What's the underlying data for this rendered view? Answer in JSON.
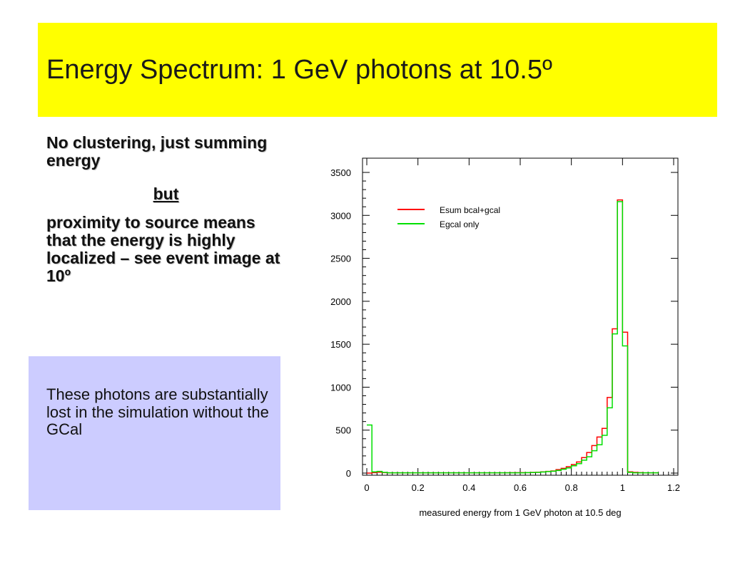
{
  "slide": {
    "title": "Energy Spectrum: 1 GeV photons at 10.5º",
    "bullet1": "No clustering, just summing energy",
    "but": "but",
    "bullet2": "proximity to source means that the energy is highly localized – see event image at 10º",
    "note": "These photons are substantially lost in the simulation without the GCal"
  },
  "colors": {
    "title_bg": "#ffff00",
    "note_bg": "#ccccff",
    "esum": "#ff0000",
    "egcal": "#00e000"
  },
  "chart_data": {
    "type": "line",
    "xlabel": "measured energy from 1 GeV photon at 10.5 deg",
    "ylabel": "",
    "xlim": [
      0,
      1.2
    ],
    "ylim": [
      0,
      3500
    ],
    "x_ticks": [
      "0",
      "0.2",
      "0.4",
      "0.6",
      "0.8",
      "1",
      "1.2"
    ],
    "y_ticks": [
      "0",
      "500",
      "1000",
      "1500",
      "2000",
      "2500",
      "3000",
      "3500"
    ],
    "legend_position": "top-left",
    "bin_width": 0.02,
    "series": [
      {
        "name": "Esum bcal+gcal",
        "color": "#ff0000",
        "bins": [
          [
            0.0,
            0
          ],
          [
            0.02,
            5
          ],
          [
            0.04,
            10
          ],
          [
            0.06,
            5
          ],
          [
            0.08,
            3
          ],
          [
            0.1,
            3
          ],
          [
            0.2,
            3
          ],
          [
            0.3,
            3
          ],
          [
            0.4,
            3
          ],
          [
            0.5,
            3
          ],
          [
            0.6,
            5
          ],
          [
            0.62,
            5
          ],
          [
            0.64,
            8
          ],
          [
            0.66,
            10
          ],
          [
            0.68,
            15
          ],
          [
            0.7,
            20
          ],
          [
            0.72,
            25
          ],
          [
            0.74,
            40
          ],
          [
            0.76,
            55
          ],
          [
            0.78,
            75
          ],
          [
            0.8,
            100
          ],
          [
            0.82,
            130
          ],
          [
            0.84,
            180
          ],
          [
            0.86,
            240
          ],
          [
            0.88,
            320
          ],
          [
            0.9,
            420
          ],
          [
            0.92,
            520
          ],
          [
            0.94,
            880
          ],
          [
            0.96,
            1680
          ],
          [
            0.98,
            3180
          ],
          [
            1.0,
            1640
          ],
          [
            1.02,
            15
          ],
          [
            1.04,
            8
          ],
          [
            1.06,
            5
          ],
          [
            1.08,
            3
          ],
          [
            1.1,
            3
          ],
          [
            1.12,
            3
          ]
        ]
      },
      {
        "name": "Egcal only",
        "color": "#00e000",
        "bins": [
          [
            0.0,
            560
          ],
          [
            0.02,
            15
          ],
          [
            0.04,
            20
          ],
          [
            0.06,
            8
          ],
          [
            0.08,
            3
          ],
          [
            0.1,
            3
          ],
          [
            0.2,
            3
          ],
          [
            0.3,
            3
          ],
          [
            0.4,
            3
          ],
          [
            0.5,
            3
          ],
          [
            0.6,
            3
          ],
          [
            0.62,
            5
          ],
          [
            0.64,
            6
          ],
          [
            0.66,
            8
          ],
          [
            0.68,
            12
          ],
          [
            0.7,
            18
          ],
          [
            0.72,
            22
          ],
          [
            0.74,
            30
          ],
          [
            0.76,
            45
          ],
          [
            0.78,
            60
          ],
          [
            0.8,
            85
          ],
          [
            0.82,
            110
          ],
          [
            0.84,
            150
          ],
          [
            0.86,
            190
          ],
          [
            0.88,
            260
          ],
          [
            0.9,
            330
          ],
          [
            0.92,
            440
          ],
          [
            0.94,
            760
          ],
          [
            0.96,
            1620
          ],
          [
            0.98,
            3160
          ],
          [
            1.0,
            1480
          ],
          [
            1.02,
            8
          ],
          [
            1.04,
            3
          ],
          [
            1.06,
            3
          ],
          [
            1.08,
            3
          ],
          [
            1.1,
            3
          ],
          [
            1.12,
            3
          ]
        ]
      }
    ]
  }
}
